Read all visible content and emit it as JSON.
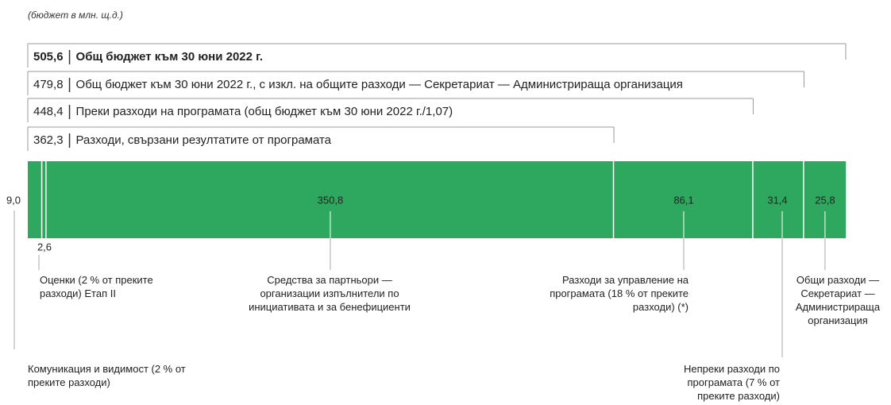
{
  "chart_data": {
    "type": "stacked-bar",
    "subtitle": "(бюджет в млн. щ.д.)",
    "color": "#2fa85f",
    "xlim": [
      0,
      505.6
    ],
    "categories": [
      "Комуникация и видимост (2 % от преките разходи)",
      "Оценки (2 % от преките разходи) Етап II",
      "Средства за партньори — организации изпълнители по инициативата и за бенефициенти",
      "Разходи за управление на програмата (18 % от преките разходи) (*)",
      "Непреки разходи по програмата (7 % от преките разходи)",
      "Общи разходи — Секретариат — Администрираща организация"
    ],
    "values": [
      9.0,
      2.6,
      350.8,
      86.1,
      31.4,
      25.8
    ],
    "value_labels": [
      "9,0",
      "2,6",
      "350,8",
      "86,1",
      "31,4",
      "25,8"
    ],
    "totals": [
      {
        "value": 505.6,
        "label": "505,6",
        "text": "Общ бюджет към 30 юни 2022 г."
      },
      {
        "value": 479.8,
        "label": "479,8",
        "text": "Общ бюджет към 30 юни 2022 г., с изкл. на общите разходи — Секретариат — Администрираща организация"
      },
      {
        "value": 448.4,
        "label": "448,4",
        "text": "Преки разходи на програмата (общ бюджет към 30 юни 2022 г./1,07)"
      },
      {
        "value": 362.3,
        "label": "362,3",
        "text": "Разходи, свързани резултатите от програмата"
      }
    ]
  }
}
